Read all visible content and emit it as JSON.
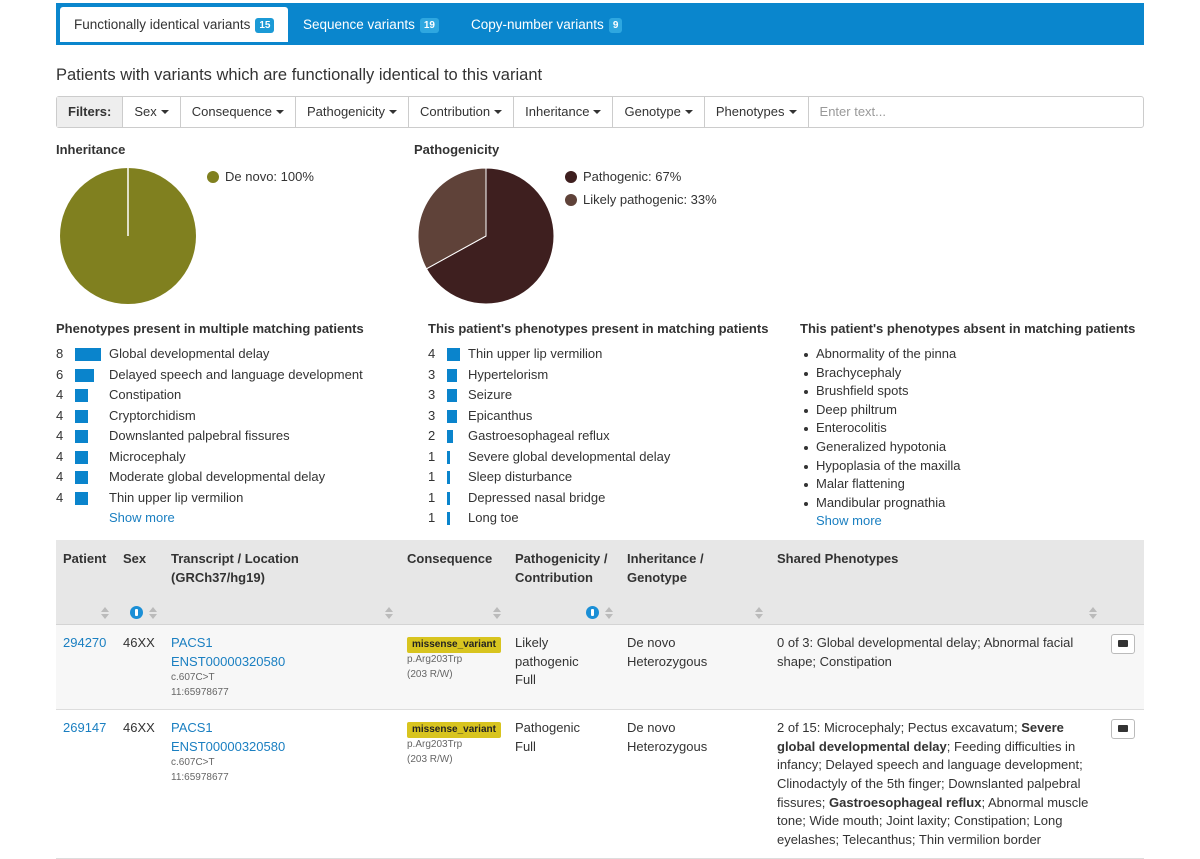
{
  "tabs": [
    {
      "label": "Functionally identical variants",
      "count": 15
    },
    {
      "label": "Sequence variants",
      "count": 19
    },
    {
      "label": "Copy-number variants",
      "count": 9
    }
  ],
  "heading": "Patients with variants which are functionally identical to this variant",
  "filters": {
    "label": "Filters:",
    "items": [
      "Sex",
      "Consequence",
      "Pathogenicity",
      "Contribution",
      "Inheritance",
      "Genotype",
      "Phenotypes"
    ],
    "placeholder": "Enter text..."
  },
  "chart_data": [
    {
      "type": "pie",
      "title": "Inheritance",
      "labels": [
        "De novo: 100%"
      ],
      "values": [
        100
      ],
      "colors": [
        "#80801f"
      ]
    },
    {
      "type": "pie",
      "title": "Pathogenicity",
      "labels": [
        "Pathogenic: 67%",
        "Likely pathogenic: 33%"
      ],
      "values": [
        67,
        33
      ],
      "colors": [
        "#3e1f1f",
        "#5f4239"
      ]
    }
  ],
  "phenotype_lists": [
    {
      "title": "Phenotypes present in multiple matching patients",
      "color": "#0a84cc",
      "items": [
        {
          "count": 8,
          "name": "Global developmental delay"
        },
        {
          "count": 6,
          "name": "Delayed speech and language development"
        },
        {
          "count": 4,
          "name": "Constipation"
        },
        {
          "count": 4,
          "name": "Cryptorchidism"
        },
        {
          "count": 4,
          "name": "Downslanted palpebral fissures"
        },
        {
          "count": 4,
          "name": "Microcephaly"
        },
        {
          "count": 4,
          "name": "Moderate global developmental delay"
        },
        {
          "count": 4,
          "name": "Thin upper lip vermilion"
        }
      ],
      "more": "Show more"
    },
    {
      "title": "This patient's phenotypes present in matching patients",
      "color": "#0a84cc",
      "items": [
        {
          "count": 4,
          "name": "Thin upper lip vermilion"
        },
        {
          "count": 3,
          "name": "Hypertelorism"
        },
        {
          "count": 3,
          "name": "Seizure"
        },
        {
          "count": 3,
          "name": "Epicanthus"
        },
        {
          "count": 2,
          "name": "Gastroesophageal reflux"
        },
        {
          "count": 1,
          "name": "Severe global developmental delay"
        },
        {
          "count": 1,
          "name": "Sleep disturbance"
        },
        {
          "count": 1,
          "name": "Depressed nasal bridge"
        },
        {
          "count": 1,
          "name": "Long toe"
        }
      ]
    }
  ],
  "absent_list": {
    "title": "This patient's phenotypes absent in matching patients",
    "items": [
      "Abnormality of the pinna",
      "Brachycephaly",
      "Brushfield spots",
      "Deep philtrum",
      "Enterocolitis",
      "Generalized hypotonia",
      "Hypoplasia of the maxilla",
      "Malar flattening",
      "Mandibular prognathia"
    ],
    "more": "Show more"
  },
  "table": {
    "columns": [
      "Patient",
      "Sex",
      "Transcript / Location (GRCh37/hg19)",
      "Consequence",
      "Pathogenicity / Contribution",
      "Inheritance / Genotype",
      "Shared Phenotypes"
    ],
    "rows": [
      {
        "patient": "294270",
        "sex": "46XX",
        "gene": "PACS1",
        "transcript": "ENST00000320580",
        "cdna": "c.607C>T",
        "location": "11:65978677",
        "consequence": "missense_variant",
        "protein": "p.Arg203Trp",
        "codon": "(203 R/W)",
        "pathogenicity": "Likely pathogenic",
        "contribution": "Full",
        "inheritance": "De novo",
        "genotype": "Heterozygous",
        "shared": [
          {
            "text": "0 of 3: Global developmental delay; Abnormal facial shape; Constipation"
          }
        ]
      },
      {
        "patient": "269147",
        "sex": "46XX",
        "gene": "PACS1",
        "transcript": "ENST00000320580",
        "cdna": "c.607C>T",
        "location": "11:65978677",
        "consequence": "missense_variant",
        "protein": "p.Arg203Trp",
        "codon": "(203 R/W)",
        "pathogenicity": "Pathogenic",
        "contribution": "Full",
        "inheritance": "De novo",
        "genotype": "Heterozygous",
        "shared": [
          {
            "text": "2 of 15: Microcephaly; Pectus excavatum; "
          },
          {
            "text": "Severe global developmental delay",
            "bold": true
          },
          {
            "text": "; Feeding difficulties in infancy; Delayed speech and language development; Clinodactyly of the 5th finger; Downslanted palpebral fissures; "
          },
          {
            "text": "Gastroesophageal reflux",
            "bold": true
          },
          {
            "text": "; Abnormal muscle tone; Wide mouth; Joint laxity; Constipation; Long eyelashes; Telecanthus; Thin vermilion border"
          }
        ]
      }
    ]
  }
}
